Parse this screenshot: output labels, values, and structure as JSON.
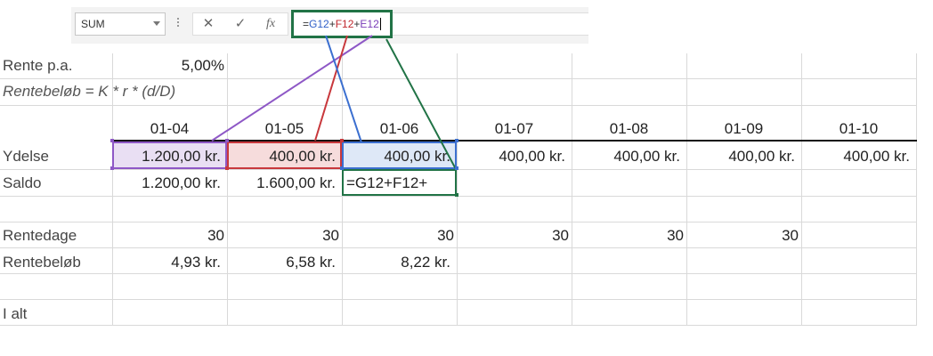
{
  "formula_bar": {
    "name_box": "SUM",
    "cancel_symbol": "✕",
    "enter_symbol": "✓",
    "fx_symbol": "fx",
    "formula_parts": [
      "=",
      "G12",
      "+",
      "F12",
      "+",
      "E12"
    ]
  },
  "sheet": {
    "rente_label": "Rente p.a.",
    "rente_value": "5,00%",
    "formula_note": "Rentebeløb = K * r * (d/D)",
    "dates": [
      "01-04",
      "01-05",
      "01-06",
      "01-07",
      "01-08",
      "01-09",
      "01-10"
    ],
    "ydelse_label": "Ydelse",
    "ydelse": [
      "1.200,00 kr.",
      "400,00 kr.",
      "400,00 kr.",
      "400,00 kr.",
      "400,00 kr.",
      "400,00 kr.",
      "400,00 kr."
    ],
    "saldo_label": "Saldo",
    "saldo": [
      "1.200,00 kr.",
      "1.600,00 kr."
    ],
    "saldo_editing": "=G12+F12+",
    "rentedage_label": "Rentedage",
    "rentedage": [
      "30",
      "30",
      "30",
      "30",
      "30",
      "30"
    ],
    "rentebelob_label": "Rentebeløb",
    "rentebelob": [
      "4,93 kr.",
      "6,58 kr.",
      "8,22 kr."
    ],
    "ialt_label": "I alt"
  },
  "colors": {
    "excel_green": "#217346",
    "ref_blue": "#3160c8",
    "ref_red": "#c0282d",
    "ref_purple": "#7a3db8"
  }
}
